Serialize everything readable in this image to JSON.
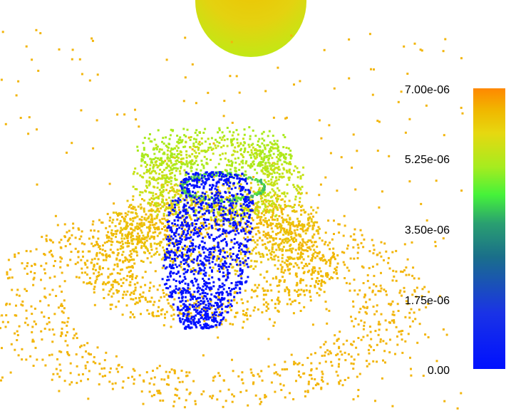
{
  "colorbar": {
    "ticks": [
      "7.00e-06",
      "5.25e-06",
      "3.50e-06",
      "1.75e-06",
      "0.00"
    ],
    "min": 0,
    "max": 7e-06,
    "colors": {
      "low": "#0010ff",
      "mid": "#45f23a",
      "high": "#ff8800",
      "scatter": "#f2b50a"
    }
  }
}
